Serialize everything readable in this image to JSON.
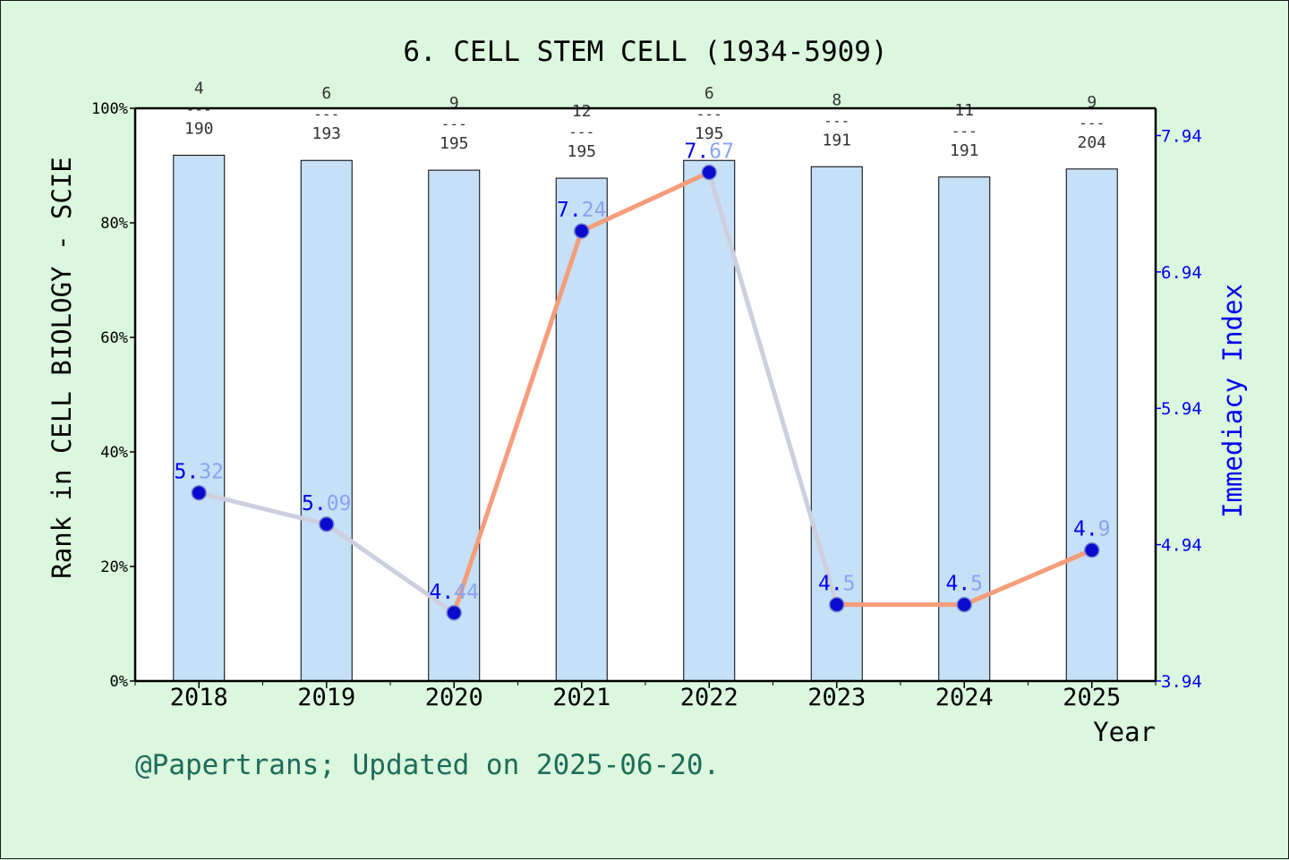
{
  "chart_data": {
    "type": "bar+line",
    "title": "6. CELL STEM CELL (1934-5909)",
    "xlabel": "Year",
    "ylabel_left": "Rank in CELL BIOLOGY - SCIE",
    "ylabel_right": "Immediacy Index",
    "categories": [
      "2018",
      "2019",
      "2020",
      "2021",
      "2022",
      "2023",
      "2024",
      "2025"
    ],
    "rank": [
      4,
      6,
      9,
      12,
      6,
      8,
      11,
      9
    ],
    "total": [
      190,
      193,
      195,
      195,
      195,
      191,
      191,
      204
    ],
    "bar_percentile": [
      91.8,
      90.9,
      89.2,
      87.8,
      90.9,
      89.8,
      88.0,
      89.4
    ],
    "immediacy_index": [
      5.32,
      5.09,
      4.44,
      7.24,
      7.67,
      4.5,
      4.5,
      4.9
    ],
    "immediacy_labels": [
      "5.32",
      "5.09",
      "4.44",
      "7.24",
      "7.67",
      "4.5",
      "4.5",
      "4.9"
    ],
    "ylim_left": [
      0,
      100
    ],
    "ylim_right": [
      3.94,
      8.14
    ],
    "left_ticks": [
      "0%",
      "20%",
      "40%",
      "60%",
      "80%",
      "100%"
    ],
    "right_ticks": [
      "3.94",
      "4.94",
      "5.94",
      "6.94",
      "7.94"
    ],
    "colors": {
      "bar_fill": "#c5e0f7",
      "line_up": "#f59c7a",
      "line_down": "#cdcfdf",
      "marker": "#0b0bd0",
      "label_blue": "#0000ee",
      "label_faded": "#8aa3ef",
      "background": "#dbf7de",
      "plot_bg": "#ffffff"
    }
  },
  "footer": "@Papertrans; Updated on 2025-06-20."
}
